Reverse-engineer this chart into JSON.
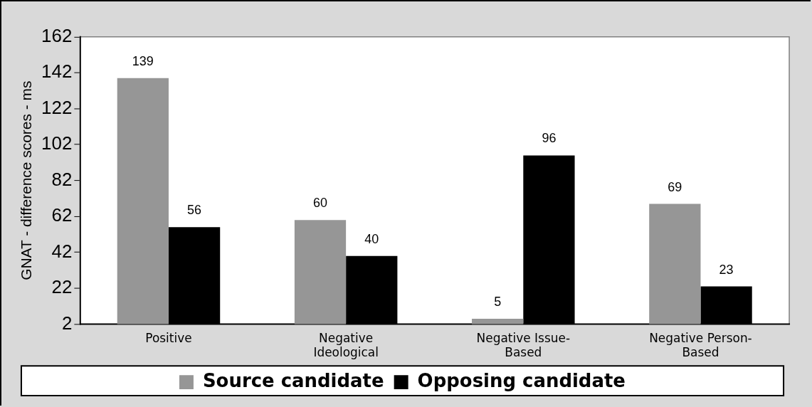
{
  "chart_data": {
    "type": "bar",
    "ylabel": "GNAT - difference scores - ms",
    "categories": [
      "Positive",
      "Negative Ideological",
      "Negative Issue-Based",
      "Negative Person-Based"
    ],
    "series": [
      {
        "name": "Source candidate",
        "color": "#969696",
        "values": [
          139,
          60,
          5,
          69
        ]
      },
      {
        "name": "Opposing candidate",
        "color": "#000000",
        "values": [
          56,
          40,
          96,
          23
        ]
      }
    ],
    "ylim": [
      2,
      162
    ],
    "yticks": [
      2,
      22,
      42,
      62,
      82,
      102,
      122,
      142,
      162
    ],
    "grid": false,
    "legend": "bottom",
    "data_labels": true
  }
}
